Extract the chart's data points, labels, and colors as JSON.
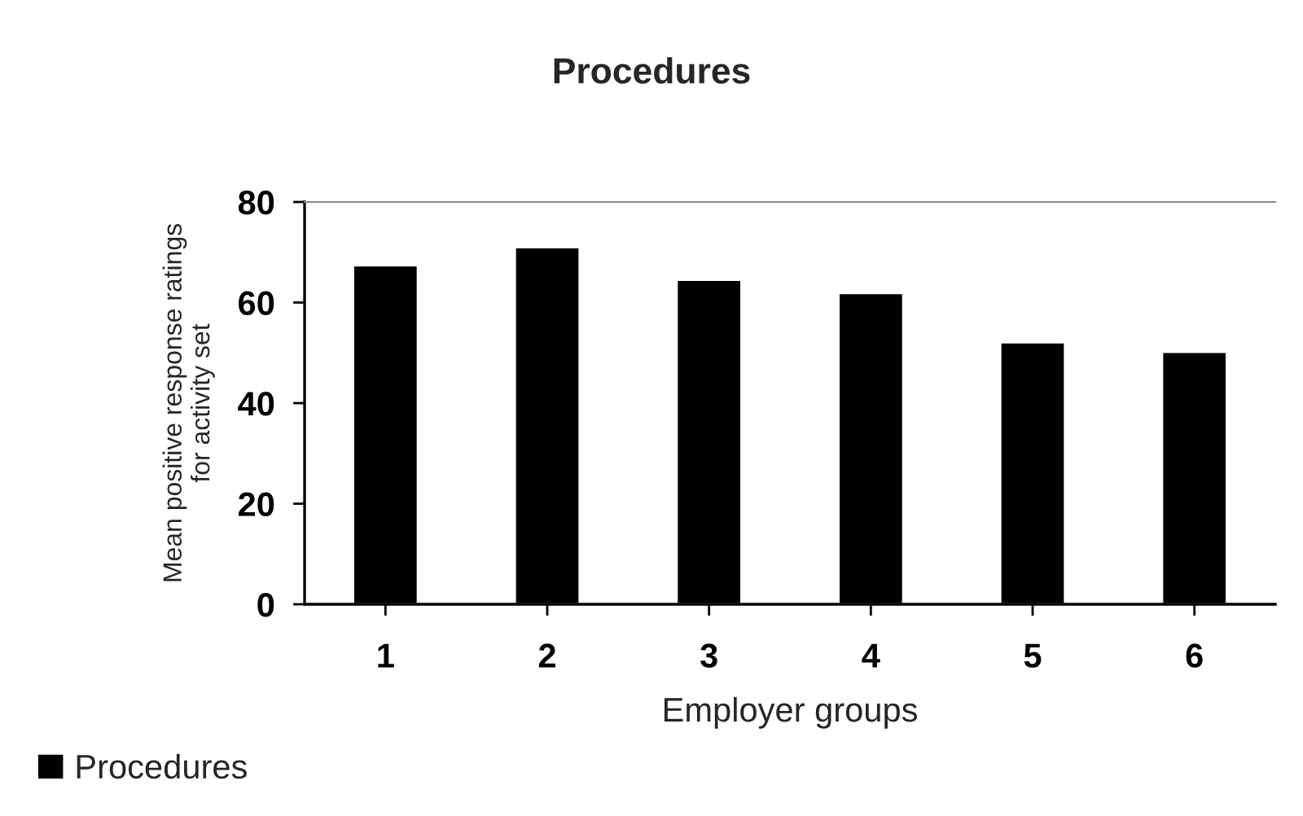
{
  "chart_data": {
    "type": "bar",
    "title": "Procedures",
    "xlabel": "Employer groups",
    "ylabel": "Mean positive response ratings\nfor activity set",
    "categories": [
      "1",
      "2",
      "3",
      "4",
      "5",
      "6"
    ],
    "series": [
      {
        "name": "Procedures",
        "color": "#000000",
        "values": [
          67.4,
          71.0,
          64.5,
          61.9,
          52.1,
          50.2
        ]
      }
    ],
    "ylim": [
      0,
      80
    ],
    "yticks": [
      0,
      20,
      40,
      60,
      80
    ],
    "grid": false,
    "legend": "bottom left"
  }
}
